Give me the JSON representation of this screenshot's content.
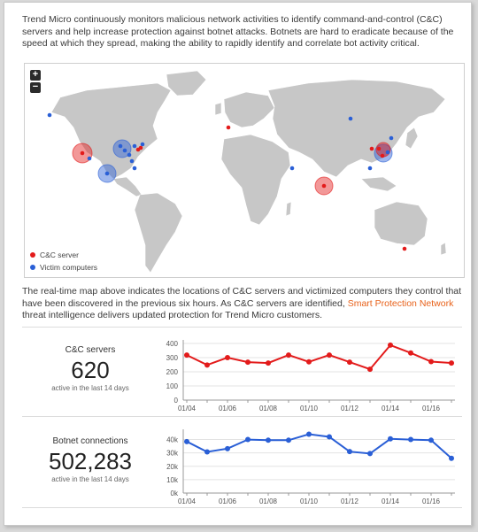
{
  "intro_text": "Trend Micro continuously monitors malicious network activities to identify command-and-control (C&C) servers and help increase protection against botnet attacks. Botnets are hard to eradicate because of the speed at which they spread, making the ability to rapidly identify and correlate bot activity critical.",
  "map": {
    "zoom_in": "+",
    "zoom_out": "−",
    "legend": [
      {
        "label": "C&C server",
        "color": "#e31b1b"
      },
      {
        "label": "Victim computers",
        "color": "#2a5fd6"
      }
    ],
    "icons": [
      "zoom-in-icon",
      "zoom-out-icon"
    ]
  },
  "description": {
    "before": "The real-time map above indicates the locations of C&C servers and victimized computers they control that have been discovered in the previous six hours. As C&C servers are identified, ",
    "link": "Smart Protection Network",
    "after": " threat intelligence delivers updated protection for Trend Micro customers."
  },
  "stats": {
    "cnc": {
      "label": "C&C servers",
      "value": "620",
      "sub": "active in the last 14 days"
    },
    "botnet": {
      "label": "Botnet connections",
      "value": "502,283",
      "sub": "active in the last 14 days"
    }
  },
  "chart_data": [
    {
      "type": "line",
      "color": "#e31b1b",
      "x": [
        "01/04",
        "01/05",
        "01/06",
        "01/07",
        "01/08",
        "01/09",
        "01/10",
        "01/11",
        "01/12",
        "01/13",
        "01/14",
        "01/15",
        "01/16",
        "01/17"
      ],
      "xtick_labels": [
        "01/04",
        "01/06",
        "01/08",
        "01/10",
        "01/12",
        "01/14",
        "01/16"
      ],
      "series": [
        {
          "values": [
            318,
            248,
            300,
            268,
            262,
            318,
            270,
            318,
            268,
            218,
            388,
            333,
            272,
            262
          ]
        }
      ],
      "ylim": [
        0,
        400
      ],
      "yticks": [
        "0",
        "100",
        "200",
        "300",
        "400"
      ],
      "grid": true
    },
    {
      "type": "line",
      "color": "#2a5fd6",
      "x": [
        "01/04",
        "01/05",
        "01/06",
        "01/07",
        "01/08",
        "01/09",
        "01/10",
        "01/11",
        "01/12",
        "01/13",
        "01/14",
        "01/15",
        "01/16",
        "01/17"
      ],
      "xtick_labels": [
        "01/04",
        "01/06",
        "01/08",
        "01/10",
        "01/12",
        "01/14",
        "01/16"
      ],
      "series": [
        {
          "values": [
            38500,
            30800,
            33200,
            40000,
            39500,
            39500,
            44000,
            42000,
            31000,
            29500,
            40500,
            40000,
            39500,
            26000
          ]
        }
      ],
      "ylim": [
        0,
        45000
      ],
      "yticks": [
        "0k",
        "10k",
        "20k",
        "30k",
        "40k"
      ],
      "grid": true
    }
  ]
}
